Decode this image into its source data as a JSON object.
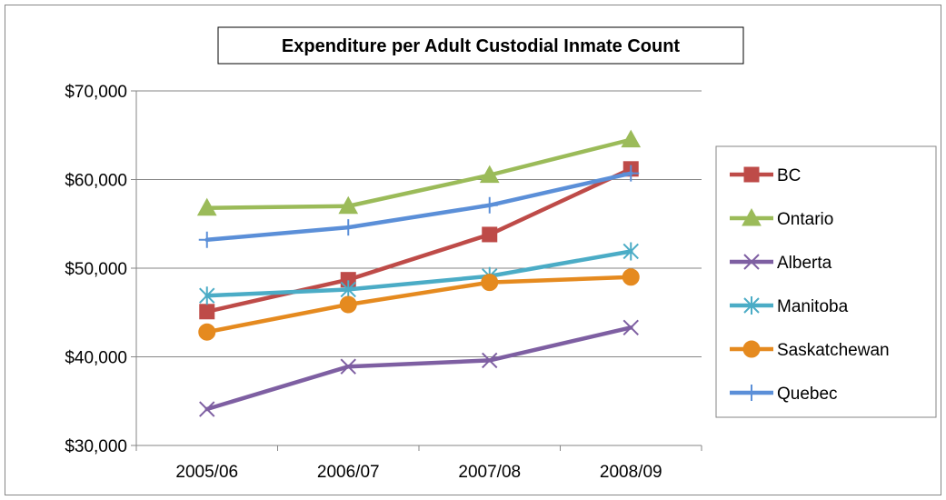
{
  "chart_data": {
    "type": "line",
    "title": "Expenditure per Adult Custodial Inmate Count",
    "xlabel": "",
    "ylabel": "",
    "categories": [
      "2005/06",
      "2006/07",
      "2007/08",
      "2008/09"
    ],
    "ylim": [
      30000,
      70000
    ],
    "yticks": [
      30000,
      40000,
      50000,
      60000,
      70000
    ],
    "ytick_labels": [
      "$30,000",
      "$40,000",
      "$50,000",
      "$60,000",
      "$70,000"
    ],
    "grid": true,
    "legend_position": "right",
    "series": [
      {
        "name": "BC",
        "values": [
          45100,
          48700,
          53800,
          61200
        ],
        "color": "#be4b48",
        "marker": "square"
      },
      {
        "name": "Ontario",
        "values": [
          56800,
          57000,
          60500,
          64500
        ],
        "color": "#9bbb59",
        "marker": "triangle"
      },
      {
        "name": "Alberta",
        "values": [
          34100,
          38900,
          39600,
          43300
        ],
        "color": "#7e5fa2",
        "marker": "x"
      },
      {
        "name": "Manitoba",
        "values": [
          46900,
          47600,
          49100,
          51900
        ],
        "color": "#4bacc6",
        "marker": "star"
      },
      {
        "name": "Saskatchewan",
        "values": [
          42800,
          45900,
          48400,
          49000
        ],
        "color": "#e58a1f",
        "marker": "circle"
      },
      {
        "name": "Quebec",
        "values": [
          53200,
          54600,
          57100,
          60700
        ],
        "color": "#5b8fd8",
        "marker": "plus"
      }
    ]
  }
}
